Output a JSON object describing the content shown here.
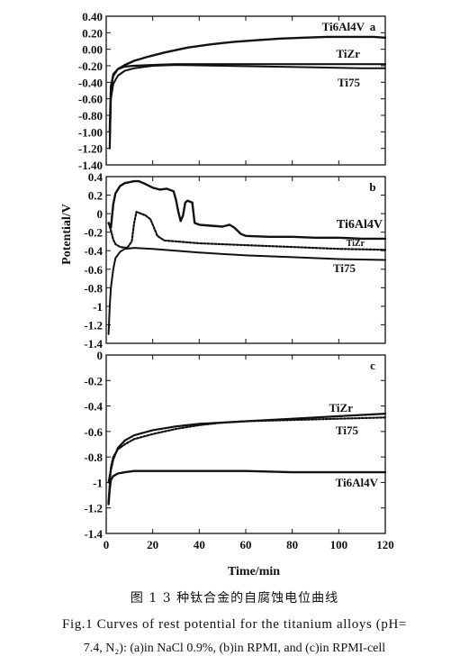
{
  "figure": {
    "ylabel": "Potential/V",
    "xlabel": "Time/min",
    "caption_cn": "图 1   3 种钛合金的自腐蚀电位曲线",
    "caption_en_line1": "Fig.1   Curves of rest potential for the titanium alloys (pH=",
    "caption_en_line2": "7.4, N₂): (a)in NaCl 0.9%, (b)in RPMI, and (c)in RPMI-cell"
  },
  "chart_data": [
    {
      "type": "line",
      "panel_label": "a",
      "xlim": [
        0,
        120
      ],
      "ylim": [
        -1.4,
        0.4
      ],
      "y_ticks": [
        "0.40",
        "0.20",
        "0.00",
        "-0.20",
        "-0.40",
        "-0.60",
        "-0.80",
        "-1.00",
        "-1.20",
        "-1.40"
      ],
      "series": [
        {
          "name": "Ti6Al4V",
          "x": [
            1.5,
            2,
            3,
            5,
            8,
            12,
            18,
            25,
            35,
            45,
            55,
            65,
            75,
            85,
            95,
            105,
            115,
            120
          ],
          "y": [
            -1.0,
            -0.45,
            -0.32,
            -0.24,
            -0.19,
            -0.14,
            -0.09,
            -0.04,
            0.02,
            0.06,
            0.09,
            0.11,
            0.13,
            0.14,
            0.15,
            0.15,
            0.15,
            0.14
          ]
        },
        {
          "name": "TiZr",
          "x": [
            1.5,
            2,
            3,
            5,
            8,
            12,
            20,
            30,
            50,
            70,
            90,
            110,
            120
          ],
          "y": [
            -1.2,
            -0.5,
            -0.3,
            -0.24,
            -0.21,
            -0.2,
            -0.19,
            -0.18,
            -0.18,
            -0.18,
            -0.18,
            -0.18,
            -0.18
          ]
        },
        {
          "name": "Ti75",
          "x": [
            1.5,
            2,
            3,
            5,
            8,
            12,
            20,
            30,
            50,
            70,
            90,
            110,
            120
          ],
          "y": [
            -1.15,
            -0.6,
            -0.42,
            -0.32,
            -0.26,
            -0.23,
            -0.2,
            -0.19,
            -0.2,
            -0.21,
            -0.22,
            -0.23,
            -0.23
          ]
        }
      ],
      "labels": [
        "Ti6Al4V",
        "TiZr",
        "Ti75"
      ]
    },
    {
      "type": "line",
      "panel_label": "b",
      "xlim": [
        0,
        120
      ],
      "ylim": [
        -1.4,
        0.4
      ],
      "y_ticks": [
        "0.4",
        "0.2",
        "0",
        "-0.2",
        "-0.4",
        "-0.6",
        "-0.8",
        "-1",
        "-1.2",
        "-1.4"
      ],
      "series": [
        {
          "name": "Ti6Al4V",
          "x": [
            1,
            2,
            3,
            4,
            6,
            8,
            10,
            12,
            14,
            16,
            20,
            23,
            26,
            29,
            30,
            31,
            32,
            33,
            34,
            35,
            36,
            37,
            38,
            40,
            45,
            50,
            53,
            55,
            58,
            60,
            70,
            80,
            90,
            100,
            110,
            120
          ],
          "y": [
            -0.1,
            -0.15,
            0.1,
            0.22,
            0.3,
            0.33,
            0.34,
            0.35,
            0.35,
            0.33,
            0.28,
            0.26,
            0.27,
            0.24,
            0.15,
            0.02,
            -0.08,
            -0.02,
            0.12,
            0.14,
            0.13,
            0.12,
            -0.1,
            -0.12,
            -0.13,
            -0.14,
            -0.12,
            -0.15,
            -0.22,
            -0.24,
            -0.25,
            -0.25,
            -0.26,
            -0.26,
            -0.27,
            -0.27
          ]
        },
        {
          "name": "TiZr",
          "x": [
            1,
            2,
            3,
            4,
            6,
            9,
            11,
            12,
            13,
            15,
            17,
            19,
            20,
            22,
            25,
            30,
            40,
            60,
            80,
            100,
            120
          ],
          "y": [
            -0.1,
            -0.18,
            -0.28,
            -0.33,
            -0.36,
            -0.37,
            -0.3,
            -0.1,
            0.02,
            0.0,
            -0.02,
            -0.06,
            -0.12,
            -0.24,
            -0.29,
            -0.3,
            -0.32,
            -0.34,
            -0.36,
            -0.38,
            -0.39
          ]
        },
        {
          "name": "Ti75",
          "x": [
            1,
            1.5,
            2,
            3,
            4,
            6,
            8,
            12,
            20,
            30,
            40,
            60,
            80,
            100,
            120
          ],
          "y": [
            -1.3,
            -1.0,
            -0.8,
            -0.6,
            -0.48,
            -0.41,
            -0.38,
            -0.37,
            -0.38,
            -0.4,
            -0.42,
            -0.45,
            -0.47,
            -0.49,
            -0.5
          ]
        }
      ],
      "labels": [
        "Ti6Al4V",
        "TiZr",
        "Ti75"
      ]
    },
    {
      "type": "line",
      "panel_label": "c",
      "xlim": [
        0,
        120
      ],
      "ylim": [
        -1.4,
        0
      ],
      "y_ticks": [
        "0",
        "-0.2",
        "-0.4",
        "-0.6",
        "-0.8",
        "-1",
        "-1.2",
        "-1.4"
      ],
      "x_ticks": [
        "0",
        "20",
        "40",
        "60",
        "80",
        "100",
        "120"
      ],
      "series": [
        {
          "name": "TiZr",
          "x": [
            1,
            2,
            3,
            5,
            8,
            12,
            20,
            30,
            40,
            50,
            60,
            80,
            100,
            120
          ],
          "y": [
            -1.0,
            -0.9,
            -0.82,
            -0.73,
            -0.67,
            -0.63,
            -0.59,
            -0.56,
            -0.54,
            -0.53,
            -0.52,
            -0.5,
            -0.48,
            -0.46
          ]
        },
        {
          "name": "Ti75",
          "x": [
            1,
            2,
            3,
            5,
            8,
            12,
            20,
            30,
            40,
            50,
            60,
            80,
            100,
            120
          ],
          "y": [
            -1.15,
            -0.88,
            -0.8,
            -0.74,
            -0.7,
            -0.66,
            -0.62,
            -0.58,
            -0.55,
            -0.53,
            -0.52,
            -0.51,
            -0.5,
            -0.49
          ]
        },
        {
          "name": "Ti6Al4V",
          "x": [
            1,
            1.5,
            2,
            3,
            5,
            8,
            12,
            20,
            40,
            60,
            80,
            100,
            120
          ],
          "y": [
            -1.17,
            -1.05,
            -0.98,
            -0.95,
            -0.93,
            -0.92,
            -0.91,
            -0.91,
            -0.91,
            -0.91,
            -0.92,
            -0.92,
            -0.92
          ]
        }
      ],
      "labels": [
        "TiZr",
        "Ti75",
        "Ti6Al4V"
      ]
    }
  ]
}
